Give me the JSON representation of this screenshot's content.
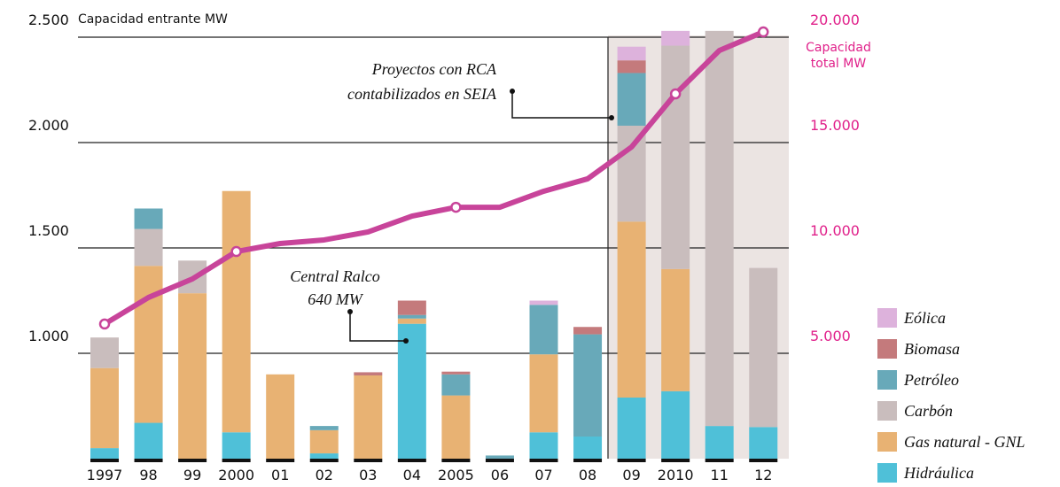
{
  "chart_data": {
    "type": "bar",
    "y_label": "Capacidad entrante MW",
    "y2_label": [
      "Capacidad",
      "total MW"
    ],
    "categories": [
      "1997",
      "98",
      "99",
      "2000",
      "01",
      "02",
      "03",
      "04",
      "2005",
      "06",
      "07",
      "08",
      "09",
      "2010",
      "11",
      "12"
    ],
    "series": [
      {
        "name": "Hidráulica",
        "color": "#4fc0d8",
        "values": [
          50,
          170,
          0,
          125,
          0,
          25,
          0,
          640,
          0,
          0,
          125,
          105,
          290,
          320,
          155,
          150
        ]
      },
      {
        "name": "Gas natural - GNL",
        "color": "#e8b273",
        "values": [
          380,
          745,
          785,
          1145,
          400,
          110,
          395,
          25,
          300,
          0,
          370,
          0,
          835,
          580,
          0,
          0
        ]
      },
      {
        "name": "Carbón",
        "color": "#c9bdbd",
        "values": [
          145,
          175,
          155,
          0,
          0,
          0,
          0,
          0,
          0,
          0,
          0,
          0,
          455,
          1060,
          1875,
          755
        ]
      },
      {
        "name": "Petróleo",
        "color": "#68a9b9",
        "values": [
          0,
          97,
          0,
          0,
          0,
          20,
          0,
          17,
          100,
          15,
          235,
          485,
          250,
          0,
          0,
          0
        ]
      },
      {
        "name": "Biomasa",
        "color": "#c47a7c",
        "values": [
          0,
          0,
          0,
          0,
          0,
          0,
          15,
          68,
          13,
          0,
          0,
          35,
          60,
          0,
          0,
          0
        ]
      },
      {
        "name": "Eólica",
        "color": "#ddb2dc",
        "values": [
          0,
          0,
          0,
          0,
          0,
          0,
          0,
          0,
          0,
          0,
          20,
          0,
          65,
          70,
          0,
          0
        ]
      },
      {
        "name": "Capacidad total MW",
        "type": "line",
        "axis": "y2",
        "color": "#c8449a",
        "values": [
          6390,
          7650,
          8530,
          9830,
          10210,
          10380,
          10760,
          11510,
          11930,
          11930,
          12690,
          13280,
          14790,
          17310,
          19370,
          20250
        ]
      }
    ],
    "ylim": [
      500,
      2500
    ],
    "yticks": [
      {
        "value": 1000,
        "label": "1.000"
      },
      {
        "value": 1500,
        "label": "1.500"
      },
      {
        "value": 2000,
        "label": "2.000"
      },
      {
        "value": 2500,
        "label": "2.500"
      }
    ],
    "y2lim": [
      0,
      20000
    ],
    "y2ticks": [
      {
        "value": 5000,
        "label": "5.000"
      },
      {
        "value": 10000,
        "label": "10.000"
      },
      {
        "value": 15000,
        "label": "15.000"
      },
      {
        "value": 20000,
        "label": "20.000"
      }
    ],
    "annotations": [
      {
        "lines": [
          "Proyectos con RCA",
          "contabilizados en SEIA"
        ]
      },
      {
        "lines": [
          "Central Ralco",
          "640 MW"
        ]
      }
    ],
    "grid": true,
    "legend": "right"
  }
}
